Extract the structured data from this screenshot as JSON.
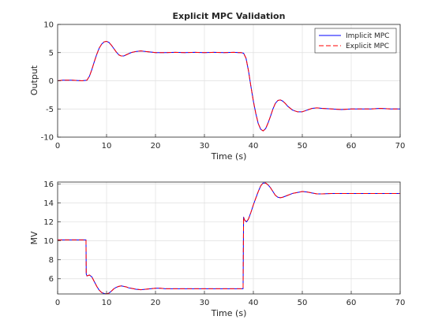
{
  "chart_data": [
    {
      "type": "line",
      "title": "Explicit MPC Validation",
      "xlabel": "Time (s)",
      "ylabel": "Output",
      "xlim": [
        0,
        70
      ],
      "ylim": [
        -10,
        10
      ],
      "xticks": [
        "0",
        "10",
        "20",
        "30",
        "40",
        "50",
        "60",
        "70"
      ],
      "yticks": [
        "-10",
        "-5",
        "0",
        "5",
        "10"
      ],
      "grid": true,
      "legend": {
        "placement": "top-right",
        "entries": [
          "Implicit MPC",
          "Explicit MPC"
        ]
      },
      "series": [
        {
          "name": "Implicit MPC",
          "color": "#0000ff",
          "style": "solid",
          "x": [
            0,
            1,
            2,
            3,
            4,
            5,
            6,
            6.5,
            7,
            7.5,
            8,
            8.5,
            9,
            9.5,
            10,
            10.5,
            11,
            11.5,
            12,
            12.5,
            13,
            13.5,
            14,
            15,
            16,
            17,
            18,
            19,
            20,
            22,
            24,
            26,
            28,
            30,
            32,
            34,
            36,
            37,
            37.5,
            38,
            38.5,
            39,
            39.5,
            40,
            40.5,
            41,
            41.5,
            42,
            42.5,
            43,
            43.5,
            44,
            44.5,
            45,
            45.5,
            46,
            46.5,
            47,
            48,
            49,
            50,
            51,
            52,
            53,
            54,
            56,
            58,
            60,
            62,
            64,
            66,
            68,
            70
          ],
          "y": [
            0,
            0.1,
            0.1,
            0.1,
            0.05,
            0,
            0.1,
            0.8,
            2.0,
            3.4,
            4.7,
            5.8,
            6.5,
            6.9,
            7.0,
            6.8,
            6.3,
            5.7,
            5.1,
            4.6,
            4.4,
            4.4,
            4.6,
            5.0,
            5.2,
            5.3,
            5.2,
            5.1,
            5.0,
            5.0,
            5.05,
            5.0,
            5.05,
            5.0,
            5.05,
            5.0,
            5.05,
            5.0,
            5.0,
            4.9,
            4.0,
            1.8,
            -1.0,
            -3.6,
            -5.8,
            -7.6,
            -8.6,
            -8.9,
            -8.5,
            -7.5,
            -6.3,
            -5.0,
            -4.0,
            -3.5,
            -3.4,
            -3.6,
            -4.0,
            -4.5,
            -5.2,
            -5.5,
            -5.5,
            -5.2,
            -4.9,
            -4.8,
            -4.9,
            -5.0,
            -5.1,
            -5.0,
            -5.0,
            -5.0,
            -4.9,
            -5.0,
            -5.0
          ]
        },
        {
          "name": "Explicit MPC",
          "color": "#ff0000",
          "style": "dashed",
          "x": [
            0,
            1,
            2,
            3,
            4,
            5,
            6,
            6.5,
            7,
            7.5,
            8,
            8.5,
            9,
            9.5,
            10,
            10.5,
            11,
            11.5,
            12,
            12.5,
            13,
            13.5,
            14,
            15,
            16,
            17,
            18,
            19,
            20,
            22,
            24,
            26,
            28,
            30,
            32,
            34,
            36,
            37,
            37.5,
            38,
            38.5,
            39,
            39.5,
            40,
            40.5,
            41,
            41.5,
            42,
            42.5,
            43,
            43.5,
            44,
            44.5,
            45,
            45.5,
            46,
            46.5,
            47,
            48,
            49,
            50,
            51,
            52,
            53,
            54,
            56,
            58,
            60,
            62,
            64,
            66,
            68,
            70
          ],
          "y": [
            0,
            0.1,
            0.1,
            0.1,
            0.05,
            0,
            0.1,
            0.8,
            2.0,
            3.4,
            4.7,
            5.8,
            6.5,
            6.9,
            7.0,
            6.8,
            6.3,
            5.7,
            5.1,
            4.6,
            4.4,
            4.4,
            4.6,
            5.0,
            5.2,
            5.3,
            5.2,
            5.1,
            5.0,
            5.0,
            5.05,
            5.0,
            5.05,
            5.0,
            5.05,
            5.0,
            5.05,
            5.0,
            5.0,
            4.9,
            4.0,
            1.8,
            -1.0,
            -3.6,
            -5.8,
            -7.6,
            -8.6,
            -8.9,
            -8.5,
            -7.5,
            -6.3,
            -5.0,
            -4.0,
            -3.5,
            -3.4,
            -3.6,
            -4.0,
            -4.5,
            -5.2,
            -5.5,
            -5.5,
            -5.2,
            -4.9,
            -4.8,
            -4.9,
            -5.0,
            -5.1,
            -5.0,
            -5.0,
            -5.0,
            -4.9,
            -5.0,
            -5.0
          ]
        }
      ]
    },
    {
      "type": "line",
      "title": "",
      "xlabel": "Time (s)",
      "ylabel": "MV",
      "xlim": [
        0,
        70
      ],
      "ylim": [
        4.4,
        16.2
      ],
      "xticks": [
        "0",
        "10",
        "20",
        "30",
        "40",
        "50",
        "60",
        "70"
      ],
      "ytick_values": [
        6,
        8,
        10,
        12,
        14,
        16
      ],
      "yticks": [
        "6",
        "8",
        "10",
        "12",
        "14",
        "16"
      ],
      "grid": true,
      "series": [
        {
          "color": "#0000ff",
          "style": "solid",
          "x": [
            0,
            5.8,
            5.85,
            6.0,
            6.5,
            7,
            7.5,
            8,
            8.5,
            9,
            9.5,
            10,
            10.5,
            11,
            11.5,
            12,
            12.5,
            13,
            13.5,
            14,
            14.5,
            15,
            16,
            17,
            18,
            19,
            20,
            21,
            22,
            24,
            26,
            28,
            30,
            32,
            34,
            36,
            37.5,
            37.9,
            37.95,
            38.0,
            38.2,
            38.6,
            39,
            39.5,
            40,
            40.5,
            41,
            41.5,
            42,
            42.5,
            43,
            43.5,
            44,
            44.5,
            45,
            45.5,
            46,
            47,
            48,
            49,
            50,
            51,
            52,
            53,
            54,
            56,
            58,
            60,
            62,
            64,
            66,
            68,
            70
          ],
          "y": [
            10.1,
            10.1,
            6.5,
            6.3,
            6.4,
            6.2,
            5.7,
            5.2,
            4.8,
            4.55,
            4.45,
            4.4,
            4.5,
            4.7,
            4.95,
            5.1,
            5.2,
            5.25,
            5.2,
            5.15,
            5.05,
            5.0,
            4.9,
            4.85,
            4.9,
            4.95,
            5.0,
            5.0,
            4.95,
            4.95,
            4.95,
            4.95,
            4.95,
            4.95,
            4.95,
            4.95,
            4.95,
            4.95,
            8.7,
            12.5,
            12.2,
            12.0,
            12.3,
            13.0,
            13.8,
            14.5,
            15.2,
            15.8,
            16.1,
            16.1,
            15.9,
            15.6,
            15.2,
            14.8,
            14.6,
            14.55,
            14.6,
            14.8,
            15.0,
            15.1,
            15.2,
            15.15,
            15.05,
            14.95,
            14.95,
            15.0,
            15.0,
            15.0,
            15.0,
            15.0,
            15.0,
            15.0,
            15.0
          ]
        },
        {
          "color": "#ff0000",
          "style": "dashed",
          "x": [
            0,
            5.8,
            5.85,
            6.0,
            6.5,
            7,
            7.5,
            8,
            8.5,
            9,
            9.5,
            10,
            10.5,
            11,
            11.5,
            12,
            12.5,
            13,
            13.5,
            14,
            14.5,
            15,
            16,
            17,
            18,
            19,
            20,
            21,
            22,
            24,
            26,
            28,
            30,
            32,
            34,
            36,
            37.5,
            37.9,
            37.95,
            38.0,
            38.2,
            38.6,
            39,
            39.5,
            40,
            40.5,
            41,
            41.5,
            42,
            42.5,
            43,
            43.5,
            44,
            44.5,
            45,
            45.5,
            46,
            47,
            48,
            49,
            50,
            51,
            52,
            53,
            54,
            56,
            58,
            60,
            62,
            64,
            66,
            68,
            70
          ],
          "y": [
            10.1,
            10.1,
            6.5,
            6.3,
            6.4,
            6.2,
            5.7,
            5.2,
            4.8,
            4.55,
            4.45,
            4.4,
            4.5,
            4.7,
            4.95,
            5.1,
            5.2,
            5.25,
            5.2,
            5.15,
            5.05,
            5.0,
            4.9,
            4.85,
            4.9,
            4.95,
            5.0,
            5.0,
            4.95,
            4.95,
            4.95,
            4.95,
            4.95,
            4.95,
            4.95,
            4.95,
            4.95,
            4.95,
            8.7,
            12.5,
            12.2,
            12.0,
            12.3,
            13.0,
            13.8,
            14.5,
            15.2,
            15.8,
            16.1,
            16.1,
            15.9,
            15.6,
            15.2,
            14.8,
            14.6,
            14.55,
            14.6,
            14.8,
            15.0,
            15.1,
            15.2,
            15.15,
            15.05,
            14.95,
            14.95,
            15.0,
            15.0,
            15.0,
            15.0,
            15.0,
            15.0,
            15.0,
            15.0
          ]
        }
      ]
    }
  ]
}
